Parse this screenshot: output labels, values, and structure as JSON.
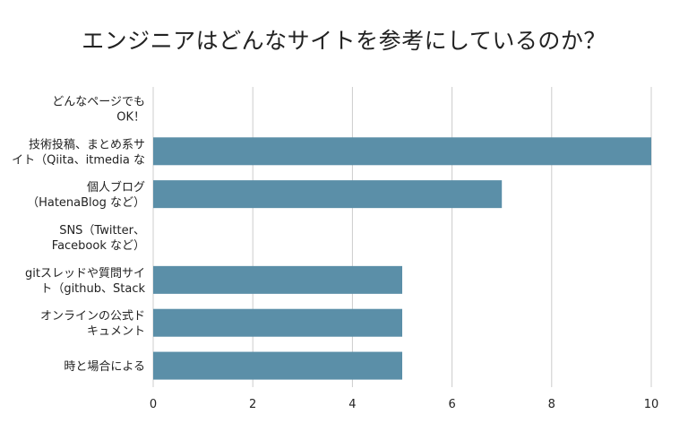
{
  "chart_data": {
    "type": "bar",
    "orientation": "horizontal",
    "title": "エンジニアはどんなサイトを参考にしているのか？",
    "categories": [
      [
        "どんなページでも",
        "OK！"
      ],
      [
        "技術投稿、まとめ系サ",
        "イト（Qiita、itmedia な"
      ],
      [
        "個人ブログ",
        "（HatenaBlog など）"
      ],
      [
        "SNS（Twitter、",
        "Facebook など）"
      ],
      [
        "gitスレッドや質問サイ",
        "ト（github、Stack"
      ],
      [
        "オンラインの公式ド",
        "キュメント"
      ],
      [
        "時と場合による"
      ]
    ],
    "values": [
      0,
      10,
      7,
      0,
      5,
      5,
      5
    ],
    "xlim": [
      0,
      10
    ],
    "xticks": [
      "0",
      "2",
      "4",
      "6",
      "8",
      "10"
    ],
    "xlabel": "",
    "ylabel": "",
    "grid": true,
    "bar_color": "#5b8fa8",
    "grid_color": "#cccccc"
  }
}
